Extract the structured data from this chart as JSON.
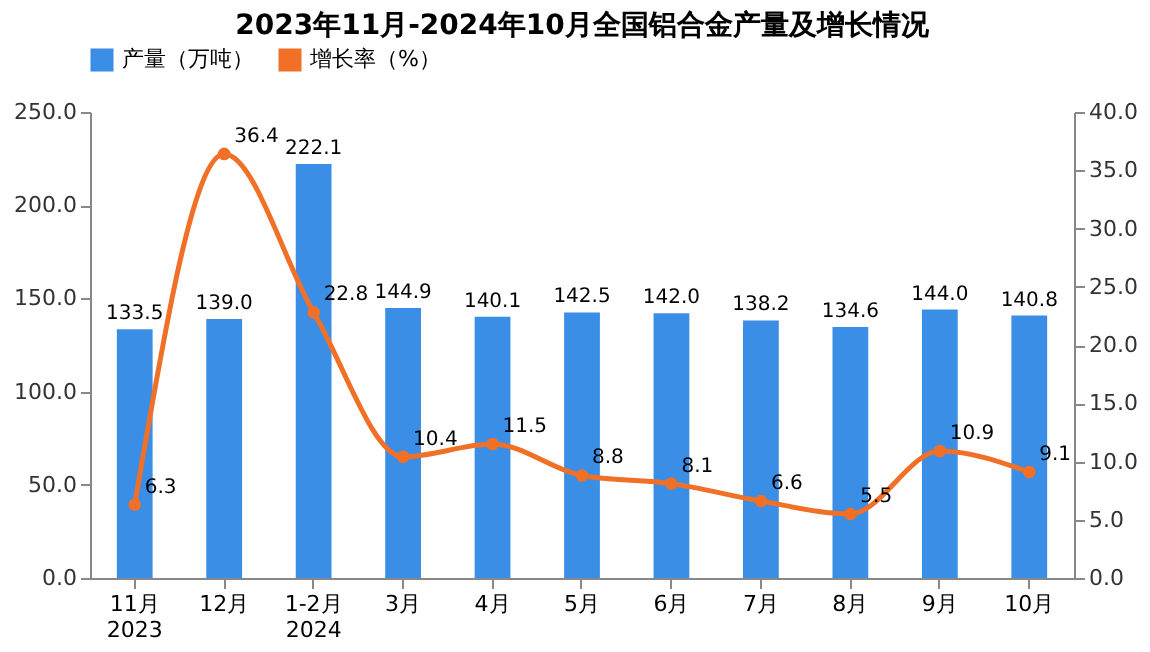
{
  "chart_data": {
    "type": "bar",
    "title": "2023年11月-2024年10月全国铝合金产量及增长情况",
    "categories": [
      "11月\n2023",
      "12月",
      "1-2月\n2024",
      "3月",
      "4月",
      "5月",
      "6月",
      "7月",
      "8月",
      "9月",
      "10月"
    ],
    "series": [
      {
        "name": "产量（万吨）",
        "color": "#3a8ee6",
        "values": [
          133.5,
          139.0,
          222.1,
          144.9,
          140.1,
          142.5,
          142.0,
          138.2,
          134.6,
          144.0,
          140.8
        ],
        "value_labels": [
          "133.5",
          "139.0",
          "222.1",
          "144.9",
          "140.1",
          "142.5",
          "142.0",
          "138.2",
          "134.6",
          "144.0",
          "140.8"
        ]
      },
      {
        "name": "增长率（%）",
        "type": "line",
        "axis": "y2",
        "color": "#f07028",
        "marker": "circle",
        "values": [
          6.3,
          36.4,
          22.8,
          10.4,
          11.5,
          8.8,
          8.1,
          6.6,
          5.5,
          10.9,
          9.1
        ],
        "value_labels": [
          "6.3",
          "36.4",
          "22.8",
          "10.4",
          "11.5",
          "8.8",
          "8.1",
          "6.6",
          "5.5",
          "10.9",
          "9.1"
        ]
      }
    ],
    "ylim": [
      0,
      250
    ],
    "yticks": [
      {
        "value": 0,
        "label": "0.0"
      },
      {
        "value": 50,
        "label": "50.0"
      },
      {
        "value": 100,
        "label": "100.0"
      },
      {
        "value": 150,
        "label": "150.0"
      },
      {
        "value": 200,
        "label": "200.0"
      },
      {
        "value": 250,
        "label": "250.0"
      }
    ],
    "y2lim": [
      0,
      40
    ],
    "y2ticks": [
      {
        "value": 0,
        "label": "0.0"
      },
      {
        "value": 5,
        "label": "5.0"
      },
      {
        "value": 10,
        "label": "10.0"
      },
      {
        "value": 15,
        "label": "15.0"
      },
      {
        "value": 20,
        "label": "20.0"
      },
      {
        "value": 25,
        "label": "25.0"
      },
      {
        "value": 30,
        "label": "30.0"
      },
      {
        "value": 35,
        "label": "35.0"
      },
      {
        "value": 40,
        "label": "40.0"
      }
    ],
    "legend": "top",
    "grid": false
  }
}
